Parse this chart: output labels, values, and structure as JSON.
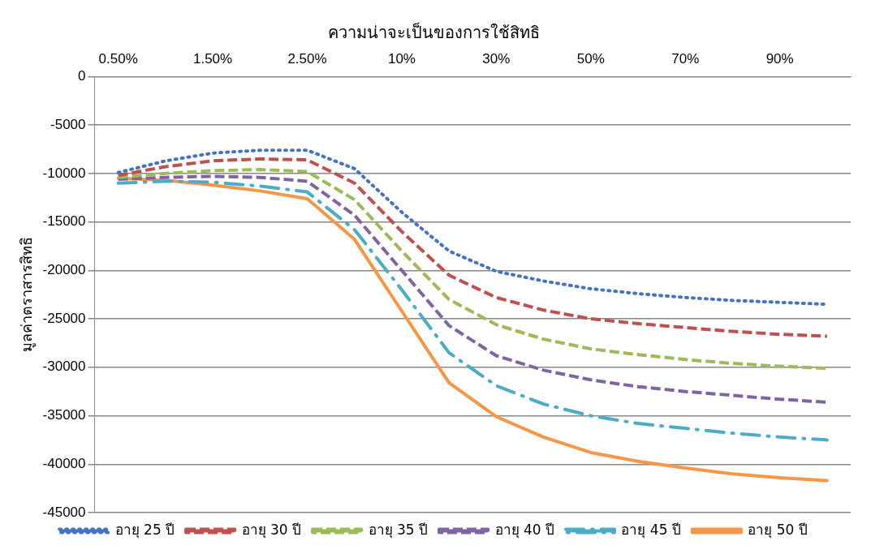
{
  "chart_data": {
    "type": "line",
    "xlabel": "ความน่าจะเป็นของการใช้สิทธิ",
    "ylabel": "มูลค่าตราสารสิทธิ",
    "categories": [
      "0.50%",
      null,
      "1.50%",
      null,
      "2.50%",
      null,
      "10%",
      null,
      "30%",
      null,
      "50%",
      null,
      "70%",
      null,
      "90%",
      null
    ],
    "ylim": [
      -45000,
      0
    ],
    "yticks": [
      0,
      -5000,
      -10000,
      -15000,
      -20000,
      -25000,
      -30000,
      -35000,
      -40000,
      -45000
    ],
    "grid": "y",
    "legend": "bottom",
    "marker": "none",
    "series": [
      {
        "name": "อายุ 25 ปี",
        "color": "#4472c4",
        "line_style": "dotted",
        "values": [
          -9900,
          -8700,
          -7900,
          -7600,
          -7600,
          -9500,
          -14000,
          -18000,
          -20100,
          -21100,
          -21900,
          -22400,
          -22800,
          -23100,
          -23300,
          -23500
        ]
      },
      {
        "name": "อายุ 30 ปี",
        "color": "#c0504d",
        "line_style": "dashed",
        "values": [
          -10200,
          -9300,
          -8700,
          -8500,
          -8600,
          -11000,
          -16000,
          -20500,
          -22800,
          -24100,
          -25000,
          -25500,
          -25900,
          -26300,
          -26600,
          -26800
        ]
      },
      {
        "name": "อายุ 35 ปี",
        "color": "#9bbb59",
        "line_style": "dashed",
        "values": [
          -10400,
          -10000,
          -9700,
          -9600,
          -9800,
          -12700,
          -18000,
          -23000,
          -25600,
          -27100,
          -28100,
          -28700,
          -29200,
          -29600,
          -29900,
          -30100
        ]
      },
      {
        "name": "อายุ 40 ปี",
        "color": "#8064a2",
        "line_style": "dashed",
        "values": [
          -10600,
          -10400,
          -10300,
          -10400,
          -10800,
          -14300,
          -20000,
          -25700,
          -28800,
          -30300,
          -31300,
          -32000,
          -32500,
          -32900,
          -33300,
          -33600
        ]
      },
      {
        "name": "อายุ 45 ปี",
        "color": "#4bacc6",
        "line_style": "dashdot",
        "values": [
          -11000,
          -10800,
          -10900,
          -11300,
          -11900,
          -15800,
          -22000,
          -28500,
          -31900,
          -33800,
          -35000,
          -35800,
          -36300,
          -36800,
          -37200,
          -37500
        ]
      },
      {
        "name": "อายุ 50 ปี",
        "color": "#f79646",
        "line_style": "solid",
        "values": [
          -10500,
          -10700,
          -11200,
          -11800,
          -12600,
          -16800,
          -24200,
          -31600,
          -35100,
          -37200,
          -38800,
          -39700,
          -40400,
          -41000,
          -41400,
          -41700
        ]
      }
    ]
  }
}
